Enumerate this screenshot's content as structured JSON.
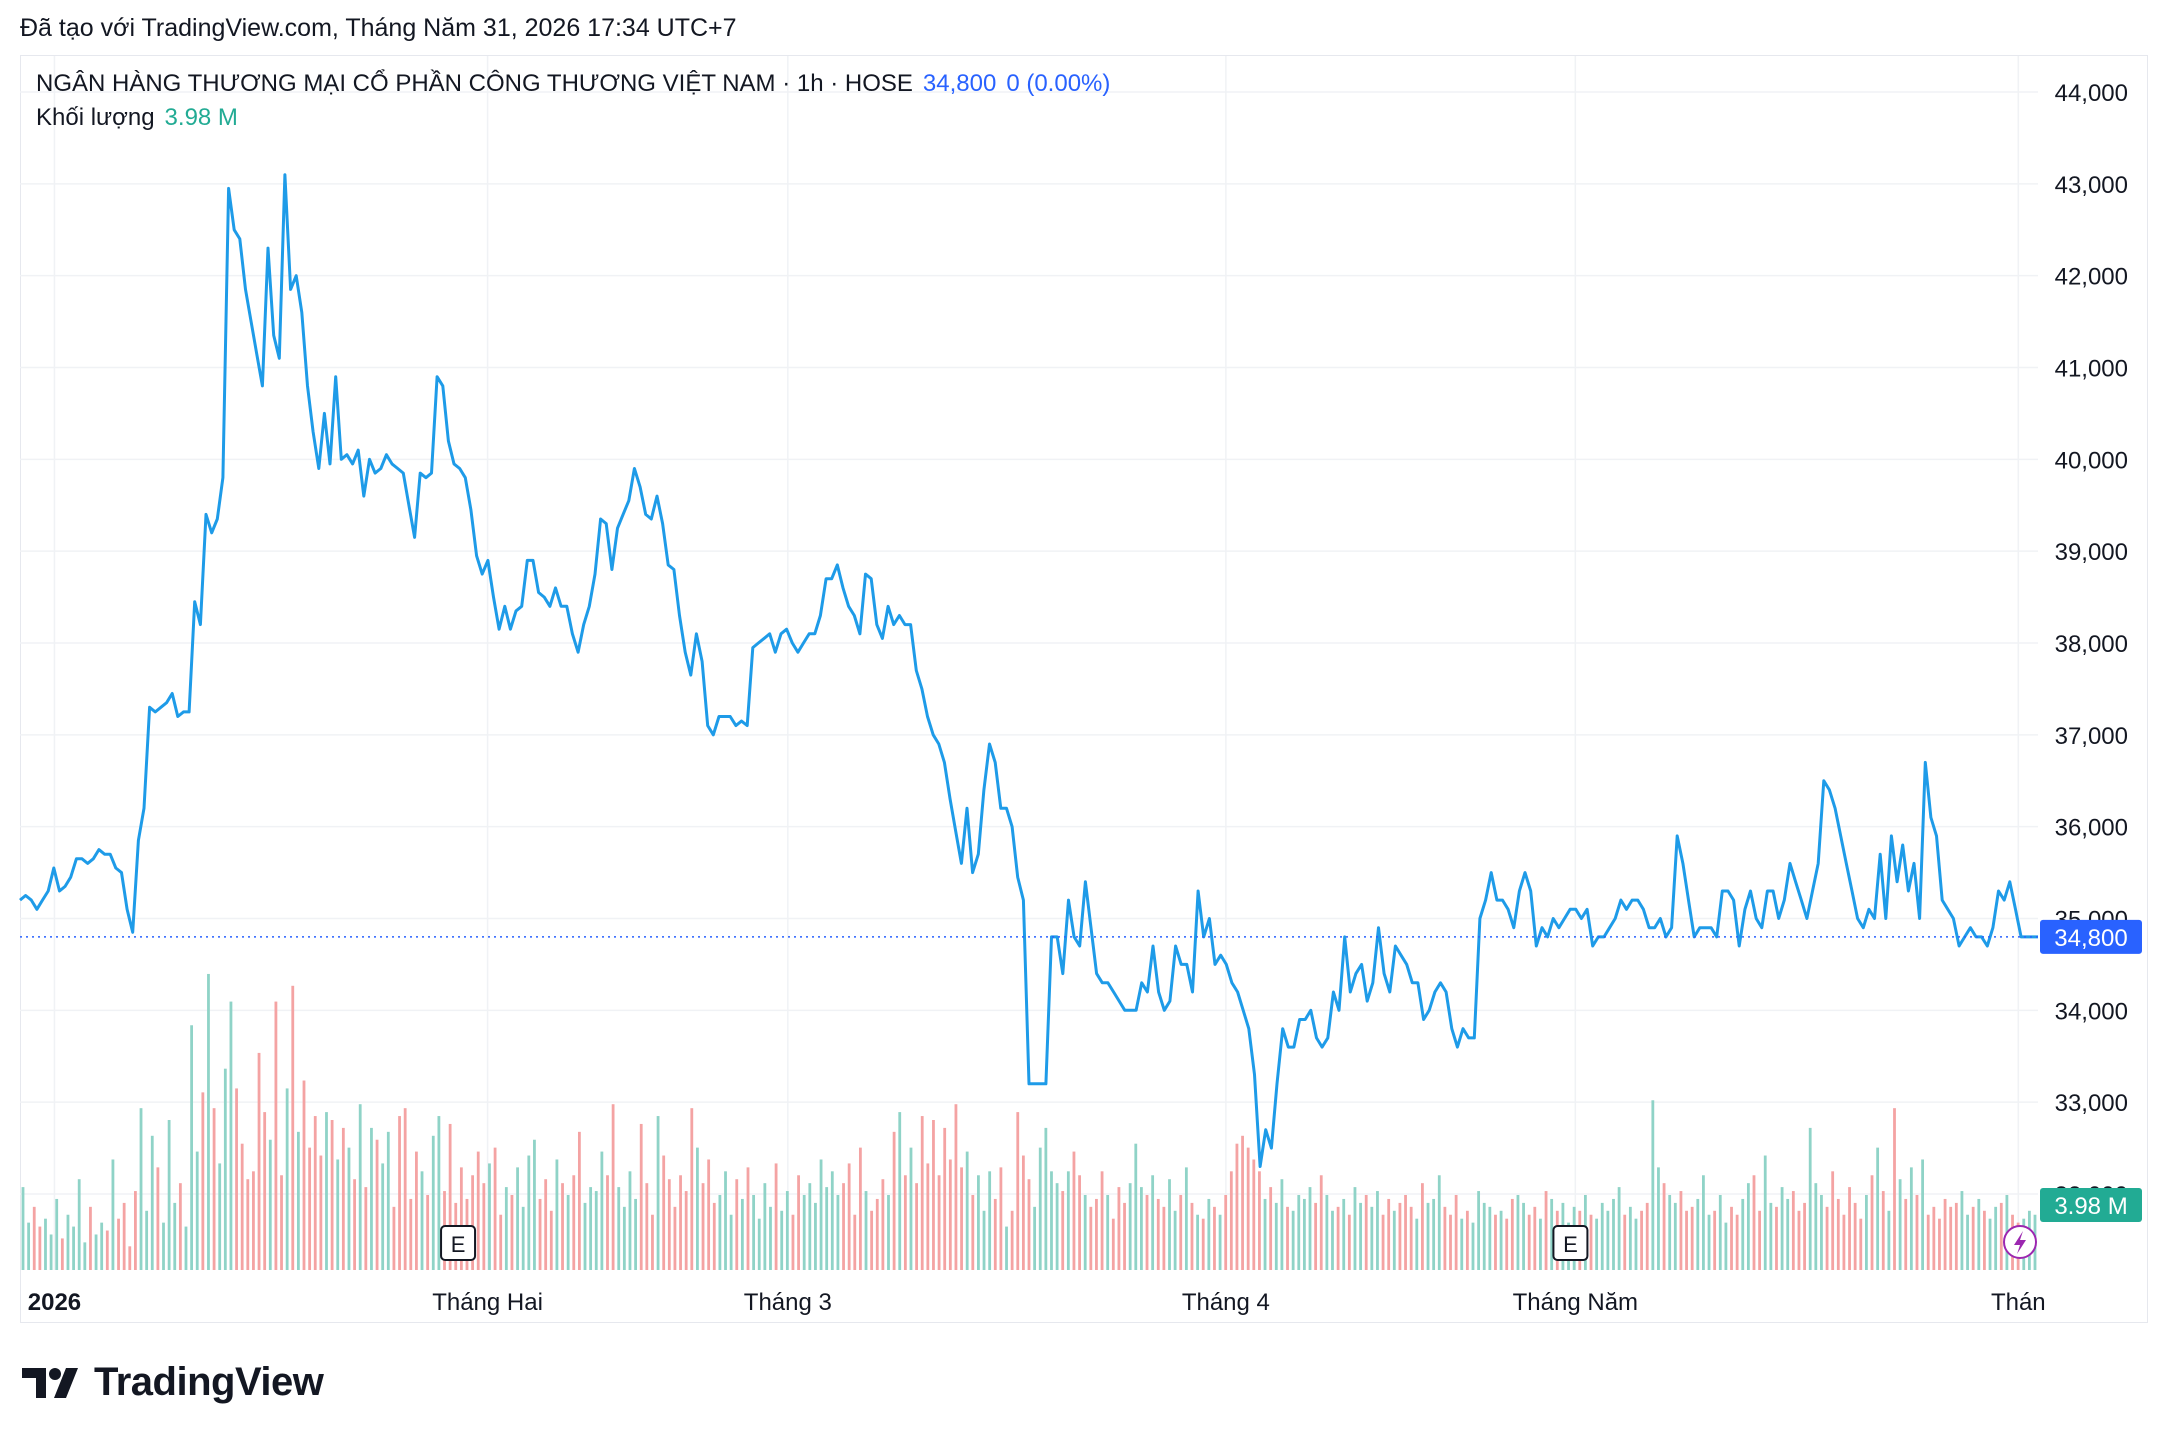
{
  "created_text": "Đã tạo với TradingView.com, Tháng Năm 31, 2026 17:34 UTC+7",
  "legend": {
    "symbol": "NGÂN HÀNG THƯƠNG MẠI CỔ PHẦN CÔNG THƯƠNG VIỆT NAM · 1h · HOSE",
    "last": "34,800",
    "change": "0 (0.00%)"
  },
  "volume_legend": {
    "label": "Khối lượng",
    "value": "3.98 M"
  },
  "brand": "TradingView",
  "colors": {
    "line_start": "#9c27f0",
    "line_mid": "#4a5cf0",
    "line_end": "#1e9be8",
    "vol_up": "#8fd3c7",
    "vol_down": "#f4a3a3",
    "price_tag": "#2962ff",
    "vol_tag": "#22ab94"
  },
  "chart_data": {
    "type": "line",
    "title": "NGÂN HÀNG THƯƠNG MẠI CỔ PHẦN CÔNG THƯƠNG VIỆT NAM · 1h · HOSE",
    "ylim": [
      31800,
      44300
    ],
    "y_ticks": [
      "44,000",
      "43,000",
      "42,000",
      "41,000",
      "40,000",
      "39,000",
      "38,000",
      "37,000",
      "36,000",
      "35,000",
      "34,000",
      "33,000",
      "32,000"
    ],
    "y_tick_values": [
      44000,
      43000,
      42000,
      41000,
      40000,
      39000,
      38000,
      37000,
      36000,
      35000,
      34000,
      33000,
      32000
    ],
    "x_ticks": [
      "2026",
      "Tháng Hai",
      "Tháng 3",
      "Tháng 4",
      "Tháng Năm",
      "Thán"
    ],
    "x_tick_values": [
      3.5,
      47.5,
      78,
      122.5,
      158,
      203
    ],
    "last_price": 34800,
    "last_price_label": "34,800",
    "volume_label": "3.98 M",
    "earnings_markers": [
      {
        "label": "E",
        "x": 44.5
      },
      {
        "label": "E",
        "x": 157.5
      }
    ],
    "series": [
      {
        "values": [
          35200,
          35250,
          35200,
          35100,
          35200,
          35300,
          35550,
          35300,
          35350,
          35450,
          35650,
          35650,
          35600,
          35650,
          35750,
          35700,
          35700,
          35550,
          35500,
          35100,
          34850,
          35850,
          36200,
          37300,
          37250,
          37300,
          37350,
          37450,
          37200,
          37250,
          37250,
          38450,
          38200,
          39400,
          39200,
          39350,
          39800,
          42950,
          42500,
          42400,
          41850,
          41500,
          41150,
          40800,
          42300,
          41350,
          41100,
          43100,
          41850,
          42000,
          41600,
          40800,
          40300,
          39900,
          40500,
          39950,
          40900,
          40000,
          40050,
          39950,
          40100,
          39600,
          40000,
          39850,
          39900,
          40050,
          39950,
          39900,
          39850,
          39500,
          39150,
          39850,
          39800,
          39850,
          40900,
          40800,
          40200,
          39950,
          39900,
          39800,
          39450,
          38950,
          38750,
          38900,
          38500,
          38150,
          38400,
          38150,
          38350,
          38400,
          38900,
          38900,
          38550,
          38500,
          38400,
          38600,
          38400,
          38400,
          38100,
          37900,
          38200,
          38400,
          38750,
          39350,
          39300,
          38800,
          39250,
          39400,
          39550,
          39900,
          39700,
          39400,
          39350,
          39600,
          39300,
          38850,
          38800,
          38300,
          37900,
          37650,
          38100,
          37800,
          37100,
          37000,
          37200,
          37200,
          37200,
          37100,
          37150,
          37100,
          37950,
          38000,
          38050,
          38100,
          37900,
          38100,
          38150,
          38000,
          37900,
          38000,
          38100,
          38100,
          38300,
          38700,
          38700,
          38850,
          38600,
          38400,
          38300,
          38100,
          38750,
          38700,
          38200,
          38050,
          38400,
          38200,
          38300,
          38200,
          38200,
          37700,
          37500,
          37200,
          37000,
          36900,
          36700,
          36300,
          35950,
          35600,
          36200,
          35500,
          35700,
          36400,
          36900,
          36700,
          36200,
          36200,
          36000,
          35450,
          35200,
          33200,
          33200,
          33200,
          33200,
          34800,
          34800,
          34400,
          35200,
          34800,
          34700,
          35400,
          34900,
          34400,
          34300,
          34300,
          34200,
          34100,
          34000,
          34000,
          34000,
          34300,
          34200,
          34700,
          34200,
          34000,
          34100,
          34700,
          34500,
          34500,
          34200,
          35300,
          34800,
          35000,
          34500,
          34600,
          34500,
          34300,
          34200,
          34000,
          33800,
          33300,
          32300,
          32700,
          32500,
          33200,
          33800,
          33600,
          33600,
          33900,
          33900,
          34000,
          33700,
          33600,
          33700,
          34200,
          34000,
          34800,
          34200,
          34400,
          34500,
          34100,
          34300,
          34900,
          34400,
          34200,
          34700,
          34600,
          34500,
          34300,
          34300,
          33900,
          34000,
          34200,
          34300,
          34200,
          33800,
          33600,
          33800,
          33700,
          33700,
          35000,
          35200,
          35500,
          35200,
          35200,
          35100,
          34900,
          35300,
          35500,
          35300,
          34700,
          34900,
          34800,
          35000,
          34900,
          35000,
          35100,
          35100,
          35000,
          35100,
          34700,
          34800,
          34800,
          34900,
          35000,
          35200,
          35100,
          35200,
          35200,
          35100,
          34900,
          34900,
          35000,
          34800,
          34900,
          35900,
          35600,
          35200,
          34800,
          34900,
          34900,
          34900,
          34800,
          35300,
          35300,
          35200,
          34700,
          35100,
          35300,
          35000,
          34900,
          35300,
          35300,
          35000,
          35200,
          35600,
          35400,
          35200,
          35000,
          35300,
          35600,
          36500,
          36400,
          36200,
          35900,
          35600,
          35300,
          35000,
          34900,
          35100,
          35000,
          35700,
          35000,
          35900,
          35400,
          35800,
          35300,
          35600,
          35000,
          36700,
          36100,
          35900,
          35200,
          35100,
          35000,
          34700,
          34800,
          34900,
          34800,
          34800,
          34700,
          34900,
          35300,
          35200,
          35400,
          35100,
          34800,
          34800,
          34800,
          34800
        ]
      }
    ],
    "volume": {
      "values": [
        2.1,
        1.2,
        1.6,
        1.1,
        1.3,
        0.9,
        1.8,
        0.8,
        1.4,
        1.1,
        2.3,
        0.7,
        1.6,
        0.9,
        1.2,
        1.0,
        2.8,
        1.3,
        1.7,
        0.6,
        2.0,
        4.1,
        1.5,
        3.4,
        2.6,
        1.2,
        3.8,
        1.7,
        2.2,
        1.1,
        6.2,
        3.0,
        4.5,
        7.5,
        4.1,
        2.7,
        5.1,
        6.8,
        4.6,
        3.2,
        2.3,
        2.5,
        5.5,
        4.0,
        3.3,
        6.8,
        2.4,
        4.6,
        7.2,
        3.5,
        4.8,
        3.1,
        3.9,
        2.9,
        4.0,
        3.8,
        2.8,
        3.6,
        3.1,
        2.3,
        4.2,
        2.1,
        3.6,
        3.3,
        2.7,
        3.5,
        1.6,
        3.9,
        4.1,
        1.8,
        3.0,
        2.5,
        1.9,
        3.4,
        3.9,
        2.0,
        3.7,
        1.7,
        2.6,
        1.8,
        2.4,
        3.0,
        2.2,
        2.7,
        3.1,
        1.4,
        2.1,
        1.9,
        2.6,
        1.6,
        2.9,
        3.3,
        1.8,
        2.3,
        1.5,
        2.8,
        2.2,
        1.9,
        2.4,
        3.5,
        1.7,
        2.1,
        2.0,
        3.0,
        2.4,
        4.2,
        2.1,
        1.6,
        2.5,
        1.8,
        3.7,
        2.2,
        1.4,
        3.9,
        2.9,
        2.3,
        1.6,
        2.4,
        2.0,
        4.1,
        3.1,
        2.2,
        2.8,
        1.7,
        1.9,
        2.5,
        1.4,
        2.3,
        1.8,
        2.6,
        1.9,
        1.3,
        2.2,
        1.6,
        2.7,
        1.5,
        2.0,
        1.4,
        2.4,
        1.9,
        2.2,
        1.7,
        2.8,
        2.1,
        2.5,
        1.9,
        2.2,
        2.7,
        1.4,
        3.1,
        2.0,
        1.5,
        1.8,
        2.3,
        1.9,
        3.5,
        4.0,
        2.4,
        3.1,
        2.2,
        3.9,
        2.7,
        3.8,
        2.4,
        3.6,
        2.8,
        4.2,
        2.6,
        3.0,
        1.9,
        2.4,
        1.5,
        2.5,
        1.8,
        2.6,
        1.1,
        1.5,
        4.0,
        2.9,
        2.3,
        1.6,
        3.1,
        3.6,
        2.5,
        2.2,
        2.0,
        2.5,
        3.0,
        2.4,
        1.9,
        1.6,
        1.8,
        2.5,
        1.9,
        1.3,
        2.1,
        1.7,
        2.2,
        3.2,
        2.1,
        1.9,
        2.4,
        1.8,
        1.6,
        2.3,
        1.5,
        1.9,
        2.6,
        1.7,
        1.4,
        1.3,
        1.8,
        1.6,
        1.4,
        1.9,
        2.5,
        3.2,
        3.4,
        3.1,
        2.8,
        2.5,
        1.8,
        2.1,
        1.7,
        2.3,
        1.6,
        1.5,
        1.9,
        1.8,
        2.1,
        1.7,
        2.4,
        1.9,
        1.5,
        1.6,
        1.8,
        1.4,
        2.1,
        1.7,
        1.9,
        1.6,
        2.0,
        1.4,
        1.8,
        1.5,
        1.7,
        1.9,
        1.6,
        1.3,
        2.2,
        1.7,
        1.8,
        2.4,
        1.6,
        1.4,
        1.9,
        1.3,
        1.5,
        1.2,
        2.0,
        1.7,
        1.6,
        1.4,
        1.5,
        1.3,
        1.8,
        1.9,
        1.7,
        1.4,
        1.6,
        1.3,
        2.0,
        1.8,
        1.5,
        1.7,
        1.2,
        1.6,
        1.5,
        1.9,
        1.4,
        1.3,
        1.7,
        1.5,
        1.8,
        2.1,
        1.4,
        1.6,
        1.3,
        1.5,
        1.7,
        4.3,
        2.6,
        2.2,
        1.9,
        1.7,
        2.0,
        1.5,
        1.6,
        1.8,
        2.4,
        1.4,
        1.5,
        1.9,
        1.2,
        1.6,
        1.4,
        1.8,
        2.2,
        2.4,
        1.5,
        2.9,
        1.7,
        1.6,
        2.1,
        1.8,
        2.0,
        1.5,
        1.7,
        3.6,
        2.2,
        1.9,
        1.6,
        2.5,
        1.8,
        1.4,
        2.1,
        1.7,
        1.3,
        1.9,
        2.4,
        3.1,
        2.0,
        1.5,
        4.1,
        2.3,
        1.8,
        2.6,
        1.9,
        2.8,
        1.4,
        1.6,
        1.3,
        1.8,
        1.6,
        1.7,
        2.0,
        1.4,
        1.6,
        1.8,
        1.5,
        1.3,
        1.6,
        1.7,
        1.9,
        1.4,
        1.2,
        1.3,
        1.5,
        1.4
      ]
    }
  }
}
